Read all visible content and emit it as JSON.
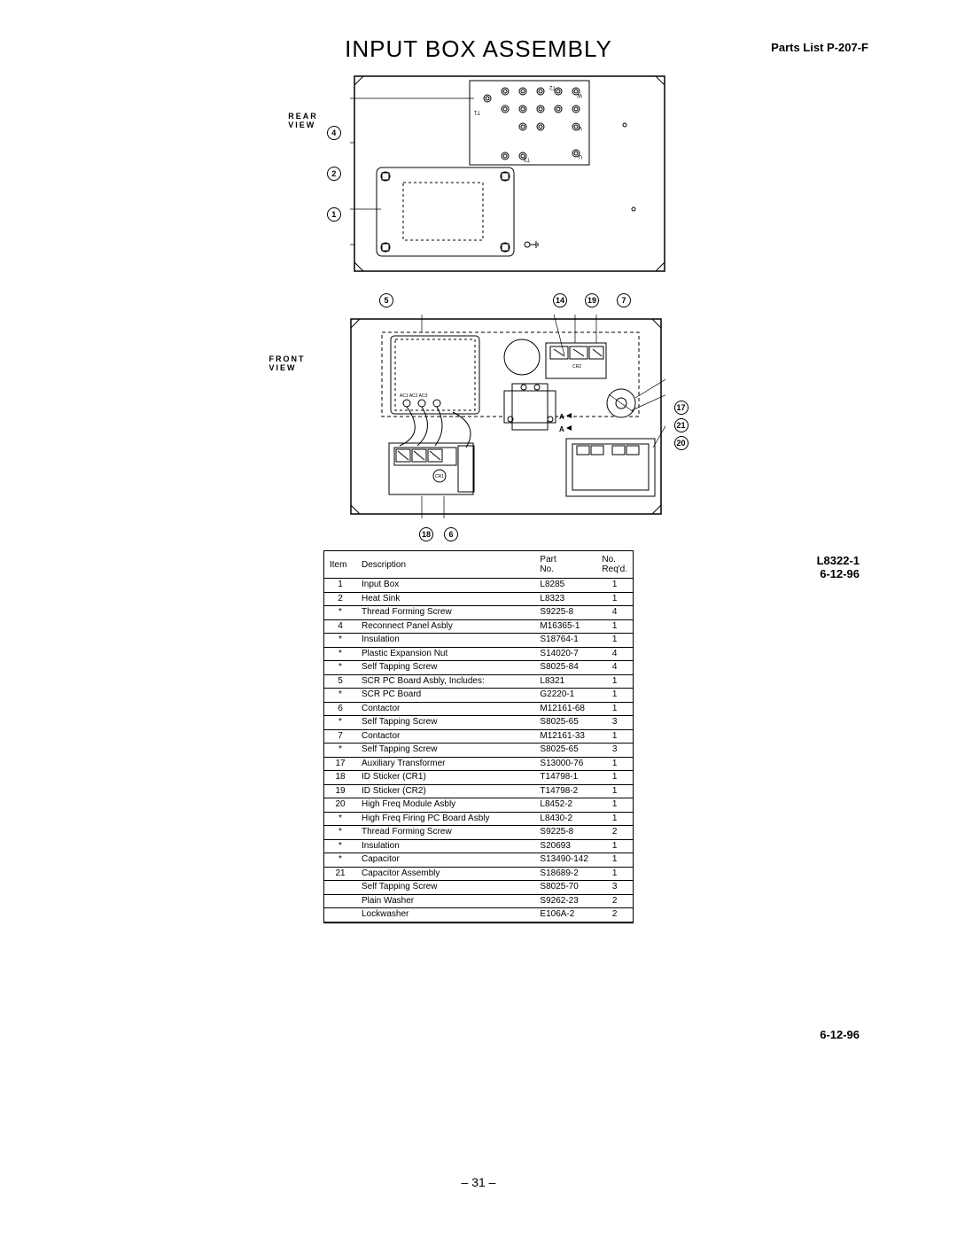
{
  "header": {
    "title": "INPUT BOX ASSEMBLY",
    "parts_list": "Parts List P-207-F"
  },
  "views": {
    "rear_label": "REAR\nVIEW",
    "front_label": "FRONT\nVIEW"
  },
  "callouts": {
    "rear_left": [
      "4",
      "2",
      "1"
    ],
    "front_top": [
      "5",
      "14",
      "19",
      "7"
    ],
    "front_right": [
      "17",
      "21",
      "20"
    ],
    "front_bottom": [
      "18",
      "6"
    ],
    "panel_labels_rear": [
      "T1",
      "T2",
      "T3",
      "U",
      "V",
      "W"
    ],
    "panel_labels_front": [
      "AC1",
      "AC2",
      "AC3",
      "CR1",
      "CR2",
      "A"
    ]
  },
  "side": {
    "drawing_no": "L8322-1",
    "date1": "6-12-96",
    "date2": "6-12-96"
  },
  "table": {
    "headers": {
      "item": "Item",
      "desc": "Description",
      "part": "Part\nNo.",
      "req": "No.\nReq'd."
    },
    "rows": [
      {
        "item": "1",
        "desc": "Input Box",
        "part": "L8285",
        "req": "1"
      },
      {
        "item": "2",
        "desc": "Heat Sink",
        "part": "L8323",
        "req": "1"
      },
      {
        "item": "*",
        "desc": "Thread Forming Screw",
        "part": "S9225-8",
        "req": "4"
      },
      {
        "item": "4",
        "desc": "Reconnect Panel Asbly",
        "part": "M16365-1",
        "req": "1"
      },
      {
        "item": "*",
        "desc": "Insulation",
        "part": "S18764-1",
        "req": "1"
      },
      {
        "item": "*",
        "desc": "Plastic Expansion Nut",
        "part": "S14020-7",
        "req": "4"
      },
      {
        "item": "*",
        "desc": "Self Tapping Screw",
        "part": "S8025-84",
        "req": "4"
      },
      {
        "item": "5",
        "desc": "SCR PC Board Asbly, Includes:",
        "part": "L8321",
        "req": "1"
      },
      {
        "item": "*",
        "desc": "SCR PC Board",
        "part": "G2220-1",
        "req": "1"
      },
      {
        "item": "6",
        "desc": "Contactor",
        "part": "M12161-68",
        "req": "1"
      },
      {
        "item": "*",
        "desc": "Self Tapping Screw",
        "part": "S8025-65",
        "req": "3"
      },
      {
        "item": "7",
        "desc": "Contactor",
        "part": "M12161-33",
        "req": "1"
      },
      {
        "item": "*",
        "desc": "Self Tapping Screw",
        "part": "S8025-65",
        "req": "3"
      },
      {
        "item": "17",
        "desc": "Auxiliary Transformer",
        "part": "S13000-76",
        "req": "1"
      },
      {
        "item": "18",
        "desc": "ID Sticker (CR1)",
        "part": "T14798-1",
        "req": "1"
      },
      {
        "item": "19",
        "desc": "ID Sticker (CR2)",
        "part": "T14798-2",
        "req": "1"
      },
      {
        "item": "20",
        "desc": "High Freq Module Asbly",
        "part": "L8452-2",
        "req": "1"
      },
      {
        "item": "*",
        "desc": "High Freq Firing PC Board Asbly",
        "part": "L8430-2",
        "req": "1"
      },
      {
        "item": "*",
        "desc": "Thread Forming Screw",
        "part": "S9225-8",
        "req": "2"
      },
      {
        "item": "*",
        "desc": "Insulation",
        "part": "S20693",
        "req": "1"
      },
      {
        "item": "*",
        "desc": "Capacitor",
        "part": "S13490-142",
        "req": "1"
      },
      {
        "item": "21",
        "desc": "Capacitor Assembly",
        "part": "S18689-2",
        "req": "1"
      },
      {
        "item": "",
        "desc": "Self Tapping Screw",
        "part": "S8025-70",
        "req": "3"
      },
      {
        "item": "",
        "desc": "Plain Washer",
        "part": "S9262-23",
        "req": "2"
      },
      {
        "item": "",
        "desc": "Lockwasher",
        "part": "E106A-2",
        "req": "2"
      }
    ]
  },
  "page_number": "– 31 –"
}
